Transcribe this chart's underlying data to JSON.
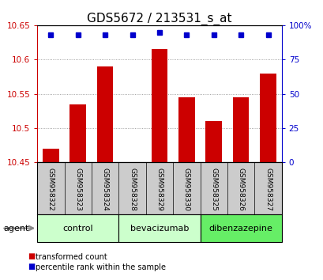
{
  "title": "GDS5672 / 213531_s_at",
  "categories": [
    "GSM958322",
    "GSM958323",
    "GSM958324",
    "GSM958328",
    "GSM958329",
    "GSM958330",
    "GSM958325",
    "GSM958326",
    "GSM958327"
  ],
  "bar_values": [
    10.47,
    10.535,
    10.59,
    10.45,
    10.615,
    10.545,
    10.51,
    10.545,
    10.58
  ],
  "percentile_values": [
    93,
    93,
    93,
    93,
    95,
    93,
    93,
    93,
    93
  ],
  "bar_color": "#cc0000",
  "percentile_color": "#0000cc",
  "ylim_left": [
    10.45,
    10.65
  ],
  "ylim_right": [
    0,
    100
  ],
  "yticks_left": [
    10.45,
    10.5,
    10.55,
    10.6,
    10.65
  ],
  "ytick_labels_left": [
    "10.45",
    "10.5",
    "10.55",
    "10.6",
    "10.65"
  ],
  "yticks_right": [
    0,
    25,
    50,
    75,
    100
  ],
  "ytick_labels_right": [
    "0",
    "25",
    "50",
    "75",
    "100%"
  ],
  "groups": [
    {
      "label": "control",
      "indices": [
        0,
        1,
        2
      ],
      "color": "#ccffcc"
    },
    {
      "label": "bevacizumab",
      "indices": [
        3,
        4,
        5
      ],
      "color": "#ccffcc"
    },
    {
      "label": "dibenzazepine",
      "indices": [
        6,
        7,
        8
      ],
      "color": "#66ee66"
    }
  ],
  "agent_label": "agent",
  "legend_items": [
    {
      "label": "transformed count",
      "color": "#cc0000"
    },
    {
      "label": "percentile rank within the sample",
      "color": "#0000cc"
    }
  ],
  "grid_color": "#888888",
  "bar_bottom": 10.45,
  "title_fontsize": 11,
  "tick_fontsize": 7.5,
  "label_fontsize": 8,
  "xtick_bg_color": "#cccccc"
}
